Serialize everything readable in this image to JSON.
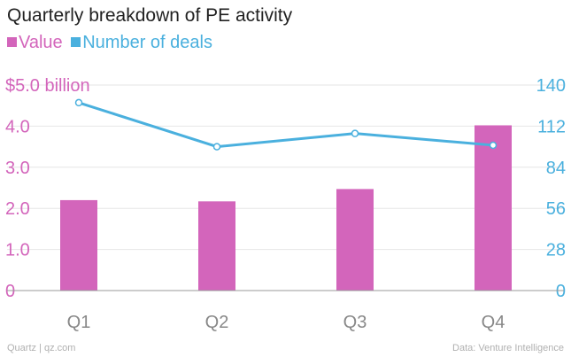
{
  "colors": {
    "value": "#d365bb",
    "deals": "#4ab0de",
    "grid": "#e6e6e6",
    "axis": "#999999",
    "xtick": "#888888"
  },
  "footer": {
    "source_left": "Quartz | qz.com",
    "source_right": "Data: Venture Intelligence"
  },
  "chart_data": {
    "type": "bar",
    "title": "Quarterly breakdown of PE activity",
    "categories": [
      "Q1",
      "Q2",
      "Q3",
      "Q4"
    ],
    "series": [
      {
        "name": "Value",
        "type": "bar",
        "axis": "left",
        "values": [
          2.2,
          2.17,
          2.47,
          4.02
        ]
      },
      {
        "name": "Number of deals",
        "type": "line",
        "axis": "right",
        "values": [
          128,
          98,
          107,
          99
        ]
      }
    ],
    "y_left": {
      "ylim": [
        0,
        5
      ],
      "ticks": [
        0,
        1,
        2,
        3,
        4,
        5
      ],
      "tick_labels": [
        "0",
        "1.0",
        "2.0",
        "3.0",
        "4.0",
        "$5.0 billion"
      ]
    },
    "y_right": {
      "ylim": [
        0,
        140
      ],
      "ticks": [
        0,
        28,
        56,
        84,
        112,
        140
      ],
      "tick_labels": [
        "0",
        "28",
        "56",
        "84",
        "112",
        "140"
      ]
    },
    "grid": true,
    "legend": "top-left"
  }
}
